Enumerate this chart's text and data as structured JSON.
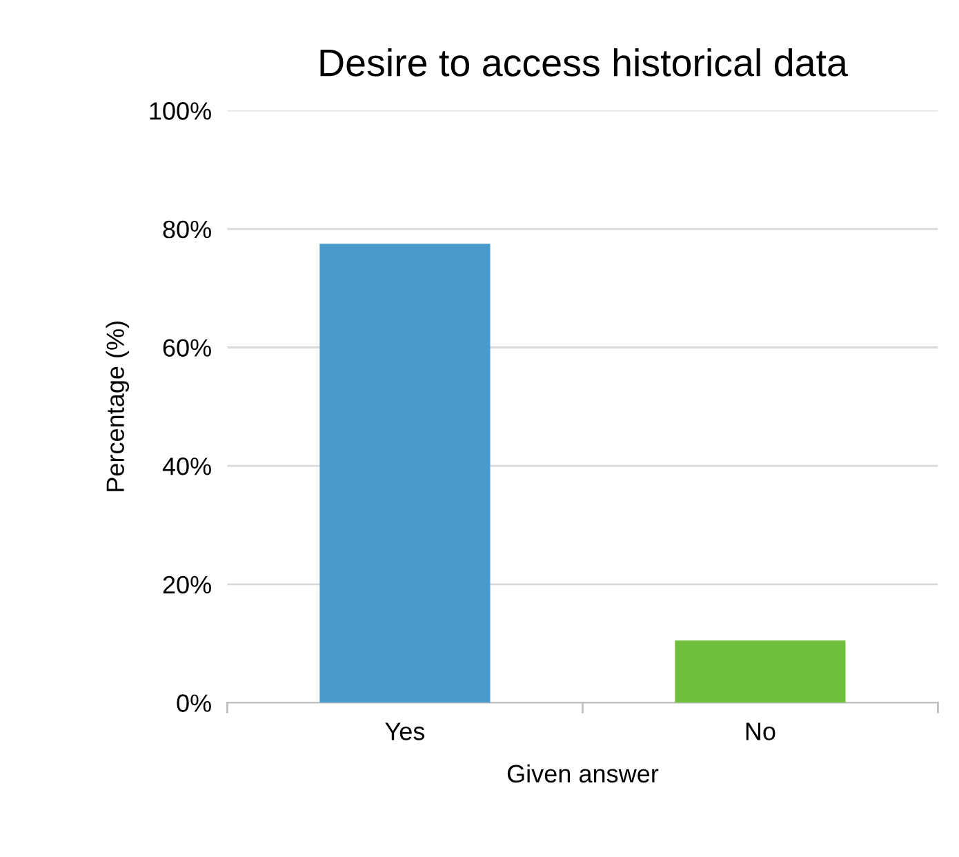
{
  "chart_data": {
    "type": "bar",
    "title": "Desire to access historical data",
    "xlabel": "Given answer",
    "ylabel": "Percentage (%)",
    "categories": [
      "Yes",
      "No"
    ],
    "values": [
      77.5,
      10.5
    ],
    "colors": [
      "#4a9bcb",
      "#70bf3f"
    ],
    "ylim": [
      0,
      100
    ],
    "yticks": [
      {
        "value": 0,
        "label": "0%"
      },
      {
        "value": 20,
        "label": "20%"
      },
      {
        "value": 40,
        "label": "40%"
      },
      {
        "value": 60,
        "label": "60%"
      },
      {
        "value": 80,
        "label": "80%"
      },
      {
        "value": 100,
        "label": "100%"
      }
    ],
    "grid": "y",
    "legend": false
  }
}
